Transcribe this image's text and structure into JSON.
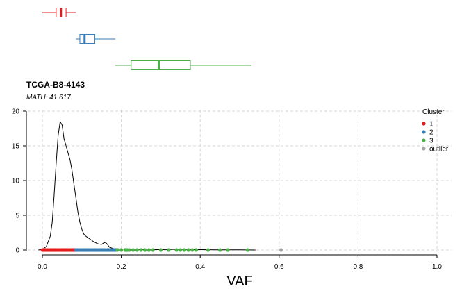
{
  "chart_data": {
    "type": "density",
    "title": "TCGA-B8-4143",
    "subtitle": "MATH: 41.617",
    "xlabel": "VAF",
    "ylabel": "",
    "xlim": [
      0,
      1
    ],
    "ylim": [
      0,
      20
    ],
    "x_ticks": [
      0.0,
      0.2,
      0.4,
      0.6,
      0.8,
      1.0
    ],
    "x_tick_labels": [
      "0.0",
      "0.2",
      "0.4",
      "0.6",
      "0.8",
      "1.0"
    ],
    "y_ticks": [
      0,
      5,
      10,
      15,
      20
    ],
    "y_tick_labels": [
      "0",
      "5",
      "10",
      "15",
      "20"
    ],
    "grid": true,
    "density_curve": {
      "x": [
        -0.01,
        0.0,
        0.01,
        0.02,
        0.025,
        0.03,
        0.035,
        0.04,
        0.045,
        0.05,
        0.055,
        0.06,
        0.065,
        0.07,
        0.075,
        0.08,
        0.085,
        0.09,
        0.095,
        0.1,
        0.105,
        0.11,
        0.12,
        0.13,
        0.14,
        0.15,
        0.155,
        0.16,
        0.165,
        0.17,
        0.18,
        0.2,
        0.22,
        0.24,
        0.26,
        0.28,
        0.3,
        0.32,
        0.34,
        0.36,
        0.38,
        0.4,
        0.42,
        0.44,
        0.46,
        0.48,
        0.5,
        0.52,
        0.54
      ],
      "y": [
        0.0,
        0.1,
        0.5,
        2.0,
        4.0,
        8.0,
        12.5,
        16.5,
        18.5,
        18.0,
        16.0,
        15.0,
        14.0,
        13.0,
        11.5,
        9.5,
        7.5,
        5.5,
        4.0,
        3.0,
        2.3,
        2.0,
        1.6,
        1.2,
        0.9,
        0.8,
        1.0,
        1.1,
        0.8,
        0.4,
        0.2,
        0.15,
        0.1,
        0.08,
        0.05,
        0.05,
        0.05,
        0.08,
        0.1,
        0.08,
        0.05,
        0.05,
        0.04,
        0.03,
        0.03,
        0.02,
        0.02,
        0.01,
        0.0
      ]
    },
    "clusters": [
      {
        "name": "1",
        "color": "#E41A1C",
        "range": [
          0.0,
          0.085
        ],
        "box": {
          "min": 0.0,
          "q1": 0.035,
          "median": 0.047,
          "q3": 0.06,
          "max": 0.085
        }
      },
      {
        "name": "2",
        "color": "#377EB8",
        "range": [
          0.085,
          0.185
        ],
        "box": {
          "min": 0.085,
          "q1": 0.095,
          "median": 0.107,
          "q3": 0.133,
          "max": 0.185
        }
      },
      {
        "name": "3",
        "color": "#4DAF4A",
        "range": [
          0.185,
          0.53
        ],
        "box": {
          "min": 0.185,
          "q1": 0.225,
          "median": 0.295,
          "q3": 0.375,
          "max": 0.53
        }
      }
    ],
    "cluster3_points": [
      0.19,
      0.2,
      0.21,
      0.215,
      0.22,
      0.23,
      0.24,
      0.25,
      0.26,
      0.27,
      0.28,
      0.3,
      0.32,
      0.34,
      0.35,
      0.36,
      0.37,
      0.38,
      0.39,
      0.42,
      0.45,
      0.47,
      0.52
    ],
    "outliers": [
      {
        "x": 0.605,
        "color": "#A6A6A6"
      }
    ],
    "legend": {
      "title": "Cluster",
      "position": "top-right",
      "items": [
        {
          "label": "1",
          "color": "#E41A1C"
        },
        {
          "label": "2",
          "color": "#377EB8"
        },
        {
          "label": "3",
          "color": "#4DAF4A"
        },
        {
          "label": "outlier",
          "color": "#A6A6A6"
        }
      ]
    }
  }
}
